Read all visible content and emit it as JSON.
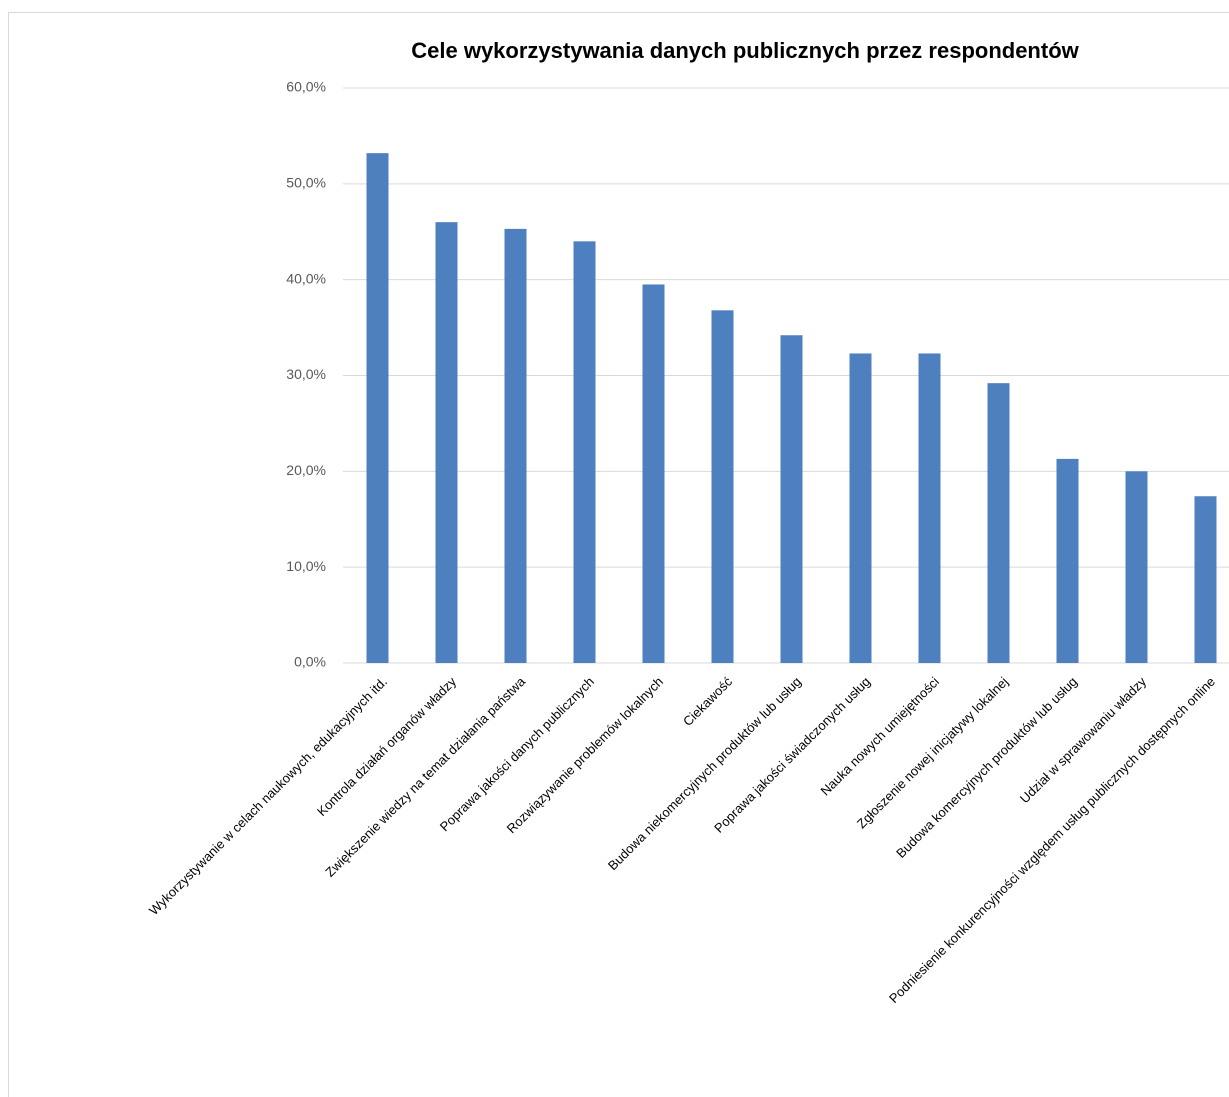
{
  "chart_data": {
    "type": "bar",
    "title": "Cele wykorzystywania danych publicznych przez respondentów",
    "categories": [
      "Wykorzystywanie w celach naukowych, edukacyjnych itd.",
      "Kontrola działań organów władzy",
      "Zwiększenie wiedzy na temat działania państwa",
      "Poprawa jakości danych publicznych",
      "Rozwiązywanie problemów lokalnych",
      "Ciekawość",
      "Budowa niekomercyjnych produktów lub usług",
      "Poprawa jakości świadczonych usług",
      "Nauka nowych umiejętności",
      "Zgłoszenie nowej inicjatywy lokalnej",
      "Budowa komercyjnych produktów lub usług",
      "Udział w sprawowaniu władzy",
      "Podniesienie konkurencyjności względem usług publicznych dostępnych online"
    ],
    "values": [
      53.2,
      46.0,
      45.3,
      44.0,
      39.5,
      36.8,
      34.2,
      32.3,
      32.3,
      29.2,
      21.3,
      20.0,
      17.4
    ],
    "color": "#4e7fbe",
    "ylim": [
      0,
      60
    ],
    "yticks": [
      {
        "value": 0,
        "label": "0,0%"
      },
      {
        "value": 10,
        "label": "10,0%"
      },
      {
        "value": 20,
        "label": "20,0%"
      },
      {
        "value": 30,
        "label": "30,0%"
      },
      {
        "value": 40,
        "label": "40,0%"
      },
      {
        "value": 50,
        "label": "50,0%"
      },
      {
        "value": 60,
        "label": "60,0%"
      }
    ],
    "grid": true
  }
}
